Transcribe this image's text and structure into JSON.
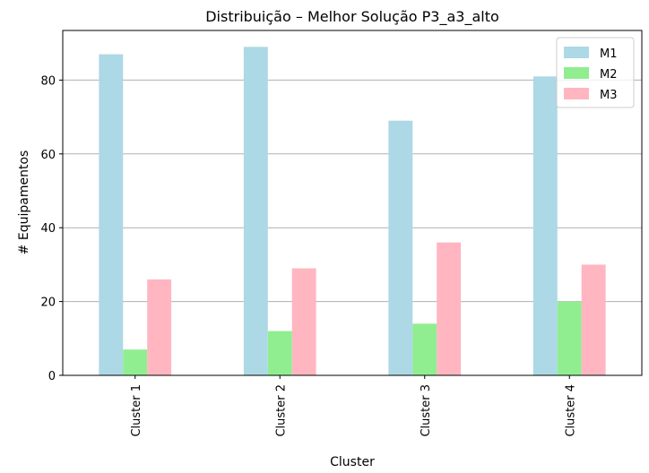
{
  "chart_data": {
    "type": "bar",
    "title": "Distribuição – Melhor Solução P3_a3_alto",
    "xlabel": "Cluster",
    "ylabel": "# Equipamentos",
    "categories": [
      "Cluster 1",
      "Cluster 2",
      "Cluster 3",
      "Cluster 4"
    ],
    "series": [
      {
        "name": "M1",
        "values": [
          87,
          89,
          69,
          81
        ],
        "color": "#add8e6"
      },
      {
        "name": "M2",
        "values": [
          7,
          12,
          14,
          20
        ],
        "color": "#90ee90"
      },
      {
        "name": "M3",
        "values": [
          26,
          29,
          36,
          30
        ],
        "color": "#ffb6c1"
      }
    ],
    "ylim": [
      0,
      93.45
    ],
    "yticks": [
      0,
      20,
      40,
      60,
      80
    ],
    "grid": "y",
    "legend_position": "top-right"
  }
}
